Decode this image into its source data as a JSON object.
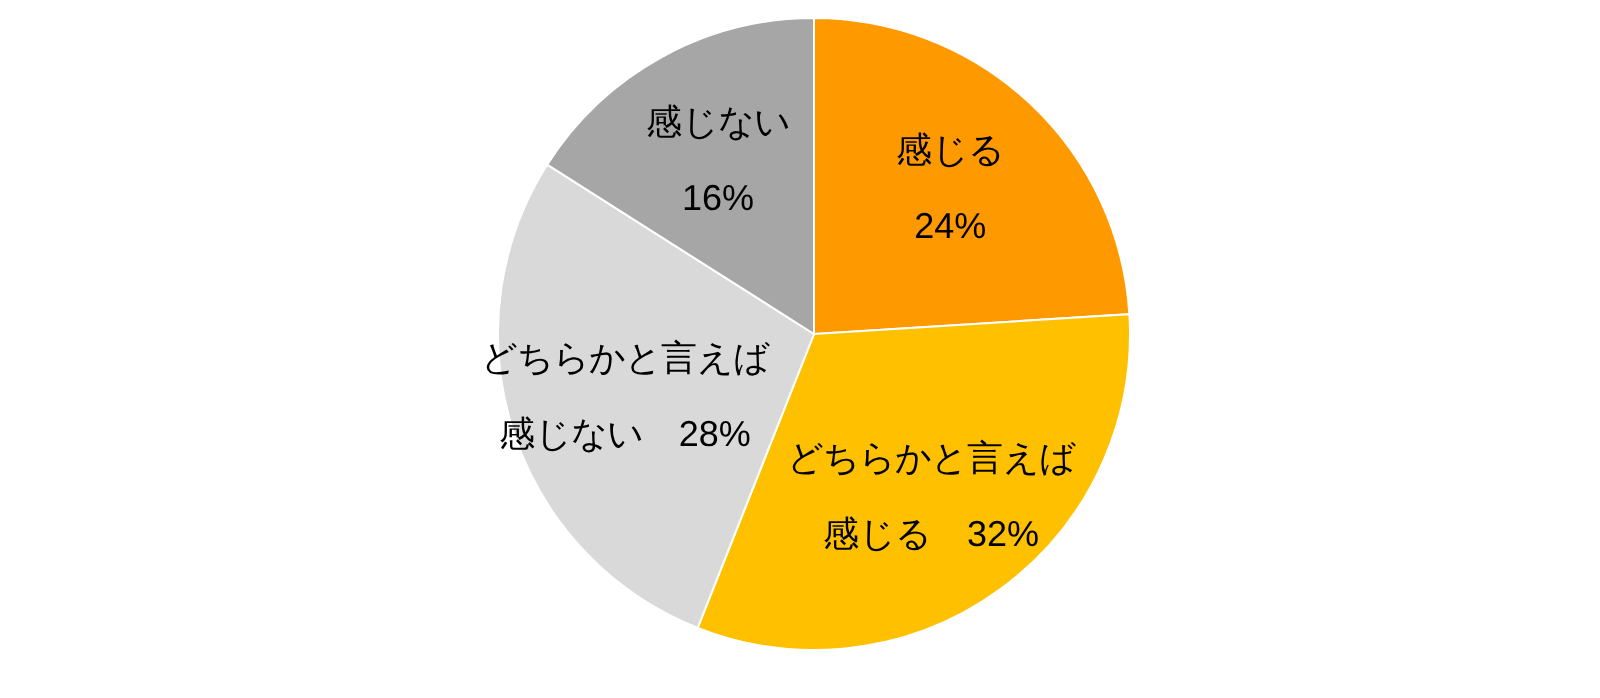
{
  "chart_data": {
    "type": "pie",
    "categories": [
      "感じる",
      "どちらかと言えば感じる",
      "どちらかと言えば感じない",
      "感じない"
    ],
    "values": [
      24,
      32,
      28,
      16
    ],
    "value_labels": [
      "24%",
      "32%",
      "28%",
      "16%"
    ],
    "colors": [
      "#ff9900",
      "#ffc000",
      "#d9d9d9",
      "#a6a6a6"
    ]
  }
}
